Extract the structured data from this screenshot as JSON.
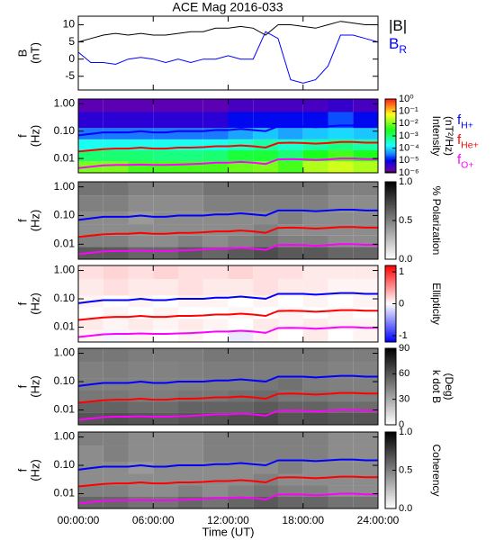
{
  "chart_data": [
    {
      "type": "line",
      "title": "ACE Mag 2016-033",
      "ylabel": [
        "B",
        "(nT)"
      ],
      "x": [
        0,
        1,
        2,
        3,
        4,
        5,
        6,
        7,
        8,
        9,
        10,
        11,
        12,
        13,
        14,
        15,
        16,
        17,
        18,
        19,
        20,
        21,
        22,
        23,
        24
      ],
      "series": [
        {
          "name": "|B|",
          "color": "#000000",
          "values": [
            5,
            6,
            7,
            7.5,
            7,
            7.5,
            7,
            7,
            7.5,
            8,
            8,
            9,
            9,
            9.5,
            9,
            7,
            10,
            10,
            9.5,
            9,
            10,
            11,
            10.5,
            10,
            10
          ]
        },
        {
          "name": "B",
          "name_sub": "R",
          "color": "#0000ff",
          "values": [
            2,
            -1,
            -1,
            -1.5,
            0,
            0.5,
            0,
            -1,
            0,
            -1,
            0,
            0,
            1,
            0,
            0,
            8,
            6,
            -6,
            -7,
            -6,
            -2,
            7,
            7,
            6,
            5
          ]
        }
      ],
      "ylim": [
        -9,
        12.5
      ],
      "yticks": [
        -5,
        0,
        5,
        10
      ]
    },
    {
      "type": "heatmap",
      "ylabel": [
        "f",
        "(Hz)"
      ],
      "log_y": true,
      "ylim": [
        0.003,
        1.5
      ],
      "yticks": [
        {
          "value": 0.01,
          "label": "0.01"
        },
        {
          "value": 0.1,
          "label": "0.10"
        },
        {
          "value": 1,
          "label": "1.00"
        }
      ],
      "xbins": [
        0,
        2,
        4,
        6,
        8,
        10,
        12,
        14,
        16,
        18,
        20,
        22,
        24
      ],
      "ybins": [
        0.003,
        0.008,
        0.02,
        0.05,
        0.13,
        0.5,
        1.5
      ],
      "z": [
        [
          0.01,
          0.01,
          0.005,
          0.005,
          0.005,
          0.005,
          0.008,
          0.01,
          0.005,
          0.02,
          0.03,
          0.02
        ],
        [
          0.001,
          0.001,
          0.001,
          0.0008,
          0.0008,
          0.001,
          0.002,
          0.002,
          0.001,
          0.003,
          0.005,
          0.003
        ],
        [
          0.0002,
          0.0002,
          0.0002,
          0.0002,
          0.0002,
          0.0002,
          0.0003,
          0.0005,
          0.0003,
          0.0005,
          0.0008,
          0.0005
        ],
        [
          3e-05,
          3e-05,
          3e-05,
          3e-05,
          3e-05,
          3e-05,
          5e-05,
          8e-05,
          5e-05,
          8e-05,
          0.0001,
          8e-05
        ],
        [
          5e-06,
          5e-06,
          5e-06,
          5e-06,
          5e-06,
          5e-06,
          1e-05,
          1e-05,
          1e-05,
          1e-05,
          2e-05,
          1e-05
        ],
        [
          2e-06,
          2e-06,
          2e-06,
          2e-06,
          2e-06,
          2e-06,
          3e-06,
          3e-06,
          3e-06,
          3e-06,
          4e-06,
          3e-06
        ]
      ],
      "colorbar": {
        "colormap": "rainbow",
        "log": true,
        "lim": [
          1e-06,
          1
        ],
        "label": [
          "Intensity",
          "(nT²/Hz)"
        ],
        "ticks": [
          {
            "value": 1,
            "label": "10⁰"
          },
          {
            "value": 0.1,
            "label": "10⁻¹"
          },
          {
            "value": 0.01,
            "label": "10⁻²"
          },
          {
            "value": 0.001,
            "label": "10⁻³"
          },
          {
            "value": 0.0001,
            "label": "10⁻⁴"
          },
          {
            "value": 1e-05,
            "label": "10⁻⁵"
          },
          {
            "value": 1e-06,
            "label": "10⁻⁶"
          }
        ]
      },
      "series": [
        {
          "name": "f",
          "name_sub": "H+",
          "color": "#0000ff",
          "values": [
            0.07,
            0.08,
            0.09,
            0.09,
            0.09,
            0.1,
            0.09,
            0.09,
            0.1,
            0.1,
            0.1,
            0.11,
            0.11,
            0.12,
            0.11,
            0.1,
            0.15,
            0.15,
            0.15,
            0.14,
            0.15,
            0.16,
            0.16,
            0.15,
            0.15
          ]
        },
        {
          "name": "f",
          "name_sub": "He+",
          "color": "#ff0000",
          "values": [
            0.018,
            0.02,
            0.022,
            0.023,
            0.023,
            0.025,
            0.023,
            0.023,
            0.025,
            0.025,
            0.026,
            0.028,
            0.028,
            0.03,
            0.028,
            0.025,
            0.037,
            0.038,
            0.037,
            0.035,
            0.037,
            0.04,
            0.04,
            0.038,
            0.038
          ]
        },
        {
          "name": "f",
          "name_sub": "O+",
          "color": "#ff00ff",
          "values": [
            0.0045,
            0.005,
            0.0056,
            0.0058,
            0.0058,
            0.006,
            0.0058,
            0.0058,
            0.006,
            0.0062,
            0.0065,
            0.007,
            0.007,
            0.0075,
            0.007,
            0.0063,
            0.0093,
            0.0095,
            0.0093,
            0.0088,
            0.0093,
            0.01,
            0.01,
            0.0095,
            0.0095
          ]
        }
      ]
    },
    {
      "type": "heatmap",
      "ylabel": [
        "f",
        "(Hz)"
      ],
      "log_y": true,
      "ylim": [
        0.003,
        1.5
      ],
      "yticks": [
        {
          "value": 0.01,
          "label": "0.01"
        },
        {
          "value": 0.1,
          "label": "0.10"
        },
        {
          "value": 1,
          "label": "1.00"
        }
      ],
      "xbins": [
        0,
        2,
        4,
        6,
        8,
        10,
        12,
        14,
        16,
        18,
        20,
        22,
        24
      ],
      "ybins": [
        0.003,
        0.008,
        0.02,
        0.05,
        0.13,
        0.5,
        1.5
      ],
      "z": [
        [
          0.65,
          0.65,
          0.6,
          0.6,
          0.65,
          0.6,
          0.65,
          0.7,
          0.65,
          0.65,
          0.6,
          0.6
        ],
        [
          0.5,
          0.5,
          0.45,
          0.45,
          0.5,
          0.45,
          0.5,
          0.55,
          0.5,
          0.5,
          0.45,
          0.45
        ],
        [
          0.45,
          0.45,
          0.45,
          0.45,
          0.45,
          0.45,
          0.45,
          0.5,
          0.45,
          0.45,
          0.45,
          0.45
        ],
        [
          0.45,
          0.45,
          0.4,
          0.45,
          0.45,
          0.45,
          0.45,
          0.45,
          0.5,
          0.45,
          0.45,
          0.45
        ],
        [
          0.5,
          0.5,
          0.45,
          0.45,
          0.45,
          0.5,
          0.5,
          0.5,
          0.5,
          0.5,
          0.45,
          0.45
        ],
        [
          0.55,
          0.55,
          0.5,
          0.5,
          0.5,
          0.55,
          0.55,
          0.55,
          0.55,
          0.55,
          0.5,
          0.5
        ]
      ],
      "colorbar": {
        "colormap": "gray",
        "log": false,
        "lim": [
          0,
          1
        ],
        "label": [
          "% Polarization"
        ],
        "ticks": [
          {
            "value": 0,
            "label": "0.0"
          },
          {
            "value": 0.5,
            "label": "0.5"
          },
          {
            "value": 1,
            "label": "1.0"
          }
        ]
      }
    },
    {
      "type": "heatmap",
      "ylabel": [
        "f",
        "(Hz)"
      ],
      "log_y": true,
      "ylim": [
        0.003,
        1.5
      ],
      "yticks": [
        {
          "value": 0.01,
          "label": "0.01"
        },
        {
          "value": 0.1,
          "label": "0.10"
        },
        {
          "value": 1,
          "label": "1.00"
        }
      ],
      "xbins": [
        0,
        2,
        4,
        6,
        8,
        10,
        12,
        14,
        16,
        18,
        20,
        22,
        24
      ],
      "ybins": [
        0.003,
        0.008,
        0.02,
        0.05,
        0.13,
        0.5,
        1.5
      ],
      "z": [
        [
          0.05,
          -0.05,
          0.05,
          0,
          0.05,
          0,
          -0.1,
          0.05,
          0,
          0.1,
          0,
          0.05
        ],
        [
          0.1,
          0.05,
          0.1,
          0.05,
          0.1,
          0.05,
          0,
          0.1,
          0.05,
          0.1,
          0.05,
          0.05
        ],
        [
          0,
          0.05,
          0,
          0.05,
          0,
          0,
          0.05,
          0,
          0.05,
          0,
          0.05,
          0
        ],
        [
          0.05,
          0,
          0.05,
          0,
          0.05,
          0.05,
          0,
          0.05,
          0,
          0.05,
          0,
          0.05
        ],
        [
          0.1,
          0.15,
          0.1,
          0.1,
          0.15,
          0.1,
          0.1,
          0.15,
          0.1,
          0.1,
          0.05,
          0.05
        ],
        [
          0.15,
          0.2,
          0.15,
          0.2,
          0.15,
          0.15,
          0.2,
          0.15,
          0.15,
          0.1,
          0.1,
          0.1
        ]
      ],
      "colorbar": {
        "colormap": "bwr",
        "log": false,
        "lim": [
          -1.2,
          1.2
        ],
        "label": [
          "Ellipticity"
        ],
        "ticks": [
          -1,
          0,
          1
        ]
      }
    },
    {
      "type": "heatmap",
      "ylabel": [
        "f",
        "(Hz)"
      ],
      "log_y": true,
      "ylim": [
        0.003,
        1.5
      ],
      "yticks": [
        {
          "value": 0.01,
          "label": "0.01"
        },
        {
          "value": 0.1,
          "label": "0.10"
        },
        {
          "value": 1,
          "label": "1.00"
        }
      ],
      "xbins": [
        0,
        2,
        4,
        6,
        8,
        10,
        12,
        14,
        16,
        18,
        20,
        22,
        24
      ],
      "ybins": [
        0.003,
        0.008,
        0.02,
        0.05,
        0.13,
        0.5,
        1.5
      ],
      "z": [
        [
          60,
          62,
          60,
          58,
          60,
          60,
          62,
          65,
          60,
          62,
          60,
          60
        ],
        [
          55,
          55,
          52,
          52,
          55,
          55,
          55,
          58,
          55,
          55,
          52,
          52
        ],
        [
          48,
          48,
          46,
          46,
          48,
          48,
          50,
          52,
          48,
          48,
          46,
          46
        ],
        [
          45,
          45,
          44,
          44,
          45,
          46,
          46,
          48,
          50,
          46,
          45,
          45
        ],
        [
          45,
          46,
          44,
          44,
          45,
          46,
          46,
          46,
          46,
          46,
          44,
          44
        ],
        [
          48,
          48,
          46,
          46,
          46,
          48,
          48,
          48,
          48,
          48,
          46,
          46
        ]
      ],
      "colorbar": {
        "colormap": "gray",
        "log": false,
        "lim": [
          0,
          90
        ],
        "label": [
          "k dot B",
          "(Deg)"
        ],
        "ticks": [
          0,
          30,
          60,
          90
        ]
      }
    },
    {
      "type": "heatmap",
      "ylabel": [
        "f",
        "(Hz)"
      ],
      "log_y": true,
      "ylim": [
        0.003,
        1.5
      ],
      "yticks": [
        {
          "value": 0.01,
          "label": "0.01"
        },
        {
          "value": 0.1,
          "label": "0.10"
        },
        {
          "value": 1,
          "label": "1.00"
        }
      ],
      "xbins": [
        0,
        2,
        4,
        6,
        8,
        10,
        12,
        14,
        16,
        18,
        20,
        22,
        24
      ],
      "ybins": [
        0.003,
        0.008,
        0.02,
        0.05,
        0.13,
        0.5,
        1.5
      ],
      "z": [
        [
          0.6,
          0.6,
          0.55,
          0.55,
          0.6,
          0.55,
          0.6,
          0.65,
          0.6,
          0.6,
          0.55,
          0.55
        ],
        [
          0.5,
          0.5,
          0.45,
          0.45,
          0.5,
          0.45,
          0.5,
          0.55,
          0.5,
          0.5,
          0.45,
          0.45
        ],
        [
          0.45,
          0.45,
          0.45,
          0.45,
          0.45,
          0.45,
          0.45,
          0.5,
          0.45,
          0.45,
          0.45,
          0.45
        ],
        [
          0.45,
          0.45,
          0.4,
          0.45,
          0.45,
          0.45,
          0.45,
          0.45,
          0.5,
          0.45,
          0.45,
          0.45
        ],
        [
          0.45,
          0.5,
          0.45,
          0.45,
          0.45,
          0.5,
          0.5,
          0.5,
          0.5,
          0.5,
          0.45,
          0.45
        ],
        [
          0.5,
          0.5,
          0.45,
          0.45,
          0.45,
          0.5,
          0.5,
          0.5,
          0.5,
          0.5,
          0.45,
          0.45
        ]
      ],
      "colorbar": {
        "colormap": "gray",
        "log": false,
        "lim": [
          0,
          1
        ],
        "label": [
          "Coherency"
        ],
        "ticks": [
          {
            "value": 0,
            "label": "0.0"
          },
          {
            "value": 0.5,
            "label": "0.5"
          },
          {
            "value": 1,
            "label": "1.0"
          }
        ]
      },
      "xlim": [
        0,
        24
      ],
      "xlabel": "Time (UT)",
      "xticks": [
        {
          "value": 0,
          "label": "00:00:00"
        },
        {
          "value": 6,
          "label": "06:00:00"
        },
        {
          "value": 12,
          "label": "12:00:00"
        },
        {
          "value": 18,
          "label": "18:00:00"
        },
        {
          "value": 24,
          "label": "24:00:00"
        }
      ]
    }
  ]
}
